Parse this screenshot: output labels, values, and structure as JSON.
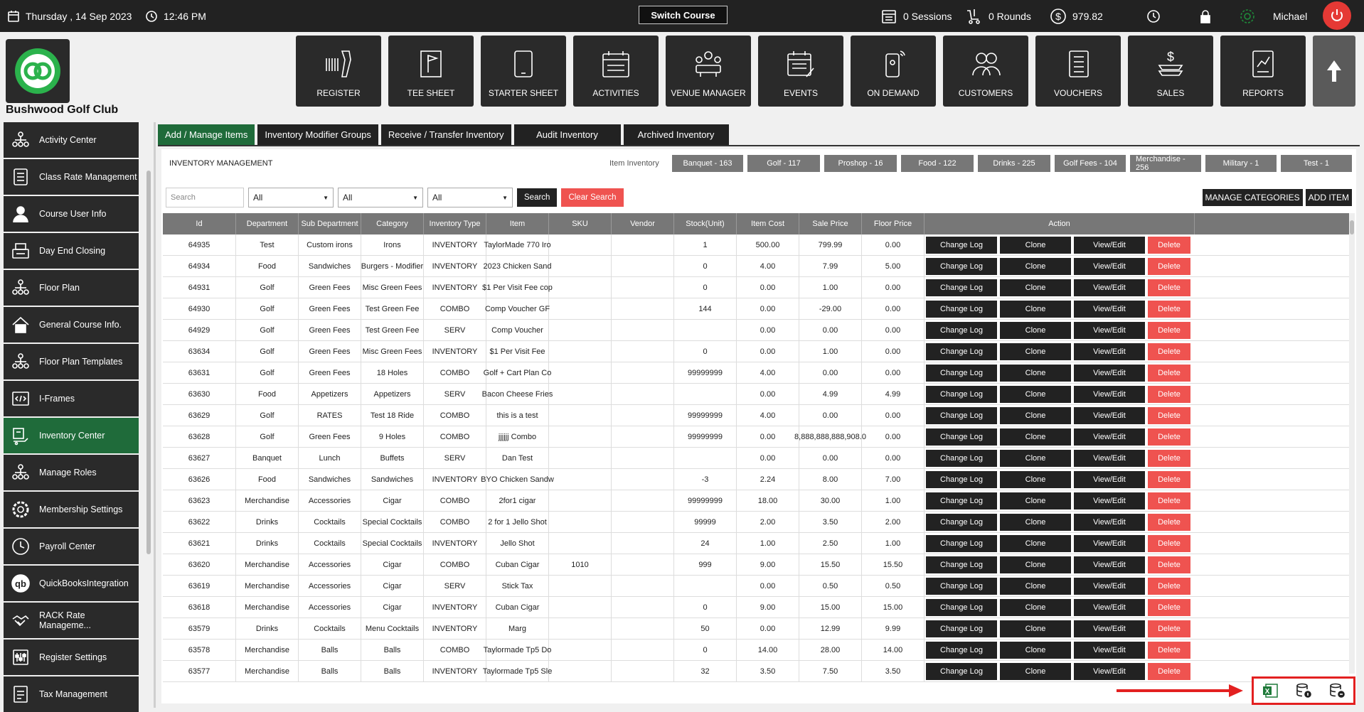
{
  "topbar": {
    "date": "Thursday ,  14 Sep 2023",
    "time": "12:46 PM",
    "switch_course": "Switch Course",
    "sessions": "0 Sessions",
    "rounds": "0 Rounds",
    "balance": "979.82",
    "user": "Michael"
  },
  "club": {
    "name": "Bushwood Golf Club"
  },
  "modules": [
    {
      "label": "REGISTER",
      "icon": "scanner-icon"
    },
    {
      "label": "TEE SHEET",
      "icon": "flag-icon"
    },
    {
      "label": "STARTER SHEET",
      "icon": "tablet-icon"
    },
    {
      "label": "ACTIVITIES",
      "icon": "calendar-list-icon"
    },
    {
      "label": "VENUE MANAGER",
      "icon": "meeting-icon"
    },
    {
      "label": "EVENTS",
      "icon": "calendar-edit-icon"
    },
    {
      "label": "ON DEMAND",
      "icon": "mobile-signal-icon"
    },
    {
      "label": "CUSTOMERS",
      "icon": "users-icon"
    },
    {
      "label": "VOUCHERS",
      "icon": "document-icon"
    },
    {
      "label": "SALES",
      "icon": "money-icon"
    },
    {
      "label": "REPORTS",
      "icon": "report-icon"
    }
  ],
  "sidebar": {
    "items": [
      {
        "label": "Activity  Center",
        "active": false
      },
      {
        "label": "Class Rate Management",
        "active": false
      },
      {
        "label": "Course User Info",
        "active": false
      },
      {
        "label": "Day End Closing",
        "active": false
      },
      {
        "label": "Floor Plan",
        "active": false
      },
      {
        "label": "General Course Info.",
        "active": false
      },
      {
        "label": "Floor Plan Templates",
        "active": false
      },
      {
        "label": "I-Frames",
        "active": false
      },
      {
        "label": "Inventory Center",
        "active": true
      },
      {
        "label": "Manage Roles",
        "active": false
      },
      {
        "label": "Membership Settings",
        "active": false
      },
      {
        "label": "Payroll Center",
        "active": false
      },
      {
        "label": "QuickBooksIntegration",
        "active": false
      },
      {
        "label": "RACK Rate Manageme...",
        "active": false
      },
      {
        "label": "Register Settings",
        "active": false
      },
      {
        "label": "Tax Management",
        "active": false
      }
    ]
  },
  "tabs": [
    {
      "label": "Add / Manage Items",
      "active": true
    },
    {
      "label": "Inventory Modifier Groups",
      "active": false
    },
    {
      "label": "Receive / Transfer Inventory",
      "active": false
    },
    {
      "label": "Audit Inventory",
      "active": false
    },
    {
      "label": "Archived Inventory",
      "active": false
    }
  ],
  "inventory": {
    "title": "INVENTORY MANAGEMENT",
    "item_inventory_label": "Item Inventory",
    "categories": [
      "Banquet - 163",
      "Golf - 117",
      "Proshop - 16",
      "Food - 122",
      "Drinks - 225",
      "Golf Fees - 104",
      "Merchandise - 256",
      "Military - 1",
      "Test - 1"
    ]
  },
  "filters": {
    "search_placeholder": "Search",
    "select1": "All",
    "select2": "All",
    "select3": "All",
    "search_btn": "Search",
    "clear_btn": "Clear Search",
    "manage_categories": "MANAGE CATEGORIES",
    "add_item": "ADD ITEM"
  },
  "table": {
    "headers": [
      "Id",
      "Department",
      "Sub Department",
      "Category",
      "Inventory Type",
      "Item",
      "SKU",
      "Vendor",
      "Stock(Unit)",
      "Item Cost",
      "Sale Price",
      "Floor Price",
      "Action"
    ],
    "actions": {
      "change_log": "Change Log",
      "clone": "Clone",
      "view_edit": "View/Edit",
      "delete": "Delete"
    },
    "rows": [
      [
        "64935",
        "Test",
        "Custom irons",
        "Irons",
        "INVENTORY",
        "TaylorMade 770 Iro",
        "",
        "",
        "1",
        "500.00",
        "799.99",
        "0.00"
      ],
      [
        "64934",
        "Food",
        "Sandwiches",
        "Burgers - Modifier",
        "INVENTORY",
        "2023 Chicken Sand",
        "",
        "",
        "0",
        "4.00",
        "7.99",
        "5.00"
      ],
      [
        "64931",
        "Golf",
        "Green Fees",
        "Misc Green Fees",
        "INVENTORY",
        "$1 Per Visit Fee cop",
        "",
        "",
        "0",
        "0.00",
        "1.00",
        "0.00"
      ],
      [
        "64930",
        "Golf",
        "Green Fees",
        "Test Green Fee",
        "COMBO",
        "Comp Voucher GF",
        "",
        "",
        "144",
        "0.00",
        "-29.00",
        "0.00"
      ],
      [
        "64929",
        "Golf",
        "Green Fees",
        "Test Green Fee",
        "SERV",
        "Comp Voucher",
        "",
        "",
        "",
        "0.00",
        "0.00",
        "0.00"
      ],
      [
        "63634",
        "Golf",
        "Green Fees",
        "Misc Green Fees",
        "INVENTORY",
        "$1 Per Visit Fee",
        "",
        "",
        "0",
        "0.00",
        "1.00",
        "0.00"
      ],
      [
        "63631",
        "Golf",
        "Green Fees",
        "18 Holes",
        "COMBO",
        "Golf + Cart Plan Co",
        "",
        "",
        "99999999",
        "4.00",
        "0.00",
        "0.00"
      ],
      [
        "63630",
        "Food",
        "Appetizers",
        "Appetizers",
        "SERV",
        "Bacon Cheese Fries",
        "",
        "",
        "",
        "0.00",
        "4.99",
        "4.99"
      ],
      [
        "63629",
        "Golf",
        "RATES",
        "Test 18 Ride",
        "COMBO",
        "this is a test",
        "",
        "",
        "99999999",
        "4.00",
        "0.00",
        "0.00"
      ],
      [
        "63628",
        "Golf",
        "Green Fees",
        "9 Holes",
        "COMBO",
        "jjjjjj Combo",
        "",
        "",
        "99999999",
        "0.00",
        "8,888,888,888,908.0",
        "0.00"
      ],
      [
        "63627",
        "Banquet",
        "Lunch",
        "Buffets",
        "SERV",
        "Dan Test",
        "",
        "",
        "",
        "0.00",
        "0.00",
        "0.00"
      ],
      [
        "63626",
        "Food",
        "Sandwiches",
        "Sandwiches",
        "INVENTORY",
        "BYO Chicken Sandw",
        "",
        "",
        "-3",
        "2.24",
        "8.00",
        "7.00"
      ],
      [
        "63623",
        "Merchandise",
        "Accessories",
        "Cigar",
        "COMBO",
        "2for1 cigar",
        "",
        "",
        "99999999",
        "18.00",
        "30.00",
        "1.00"
      ],
      [
        "63622",
        "Drinks",
        "Cocktails",
        "Special Cocktails",
        "COMBO",
        "2 for 1 Jello Shot",
        "",
        "",
        "99999",
        "2.00",
        "3.50",
        "2.00"
      ],
      [
        "63621",
        "Drinks",
        "Cocktails",
        "Special Cocktails",
        "INVENTORY",
        "Jello Shot",
        "",
        "",
        "24",
        "1.00",
        "2.50",
        "1.00"
      ],
      [
        "63620",
        "Merchandise",
        "Accessories",
        "Cigar",
        "COMBO",
        "Cuban Cigar",
        "1010",
        "",
        "999",
        "9.00",
        "15.50",
        "15.50"
      ],
      [
        "63619",
        "Merchandise",
        "Accessories",
        "Cigar",
        "SERV",
        "Stick Tax",
        "",
        "",
        "",
        "0.00",
        "0.50",
        "0.50"
      ],
      [
        "63618",
        "Merchandise",
        "Accessories",
        "Cigar",
        "INVENTORY",
        "Cuban Cigar",
        "",
        "",
        "0",
        "9.00",
        "15.00",
        "15.00"
      ],
      [
        "63579",
        "Drinks",
        "Cocktails",
        "Menu Cocktails",
        "INVENTORY",
        "Marg",
        "",
        "",
        "50",
        "0.00",
        "12.99",
        "9.99"
      ],
      [
        "63578",
        "Merchandise",
        "Balls",
        "Balls",
        "COMBO",
        "Taylormade Tp5 Do",
        "",
        "",
        "0",
        "14.00",
        "28.00",
        "14.00"
      ],
      [
        "63577",
        "Merchandise",
        "Balls",
        "Balls",
        "INVENTORY",
        "Taylormade Tp5 Sle",
        "",
        "",
        "32",
        "3.50",
        "7.50",
        "3.50"
      ]
    ]
  },
  "export": {
    "icons": [
      "excel-icon",
      "database-download-icon",
      "database-upload-icon"
    ]
  },
  "colors": {
    "accent_green": "#1f6b3a",
    "delete_red": "#ef5350",
    "dark": "#222222",
    "power_red": "#e53935"
  }
}
